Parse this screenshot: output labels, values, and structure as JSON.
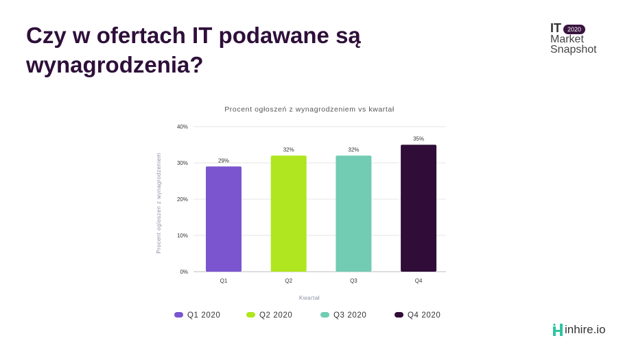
{
  "slide": {
    "title": "Czy w ofertach IT podawane są wynagrodzenia?",
    "logo": {
      "line1": "IT",
      "badge": "2020",
      "line2": "Market",
      "line3": "Snapshot"
    },
    "brand": "inhire.io"
  },
  "colors": {
    "title": "#2e0f3a",
    "Q1": "#7b55d0",
    "Q2": "#b0e61f",
    "Q3": "#72ccb4",
    "Q4": "#2f0d38"
  },
  "chart_data": {
    "type": "bar",
    "title": "Procent ogłoszeń z wynagrodzeniem vs kwartał",
    "xlabel": "Kwartał",
    "ylabel": "Procent ogloszen z wynagrodzeniem",
    "categories": [
      "Q1",
      "Q2",
      "Q3",
      "Q4"
    ],
    "values": [
      29,
      32,
      32,
      35
    ],
    "data_labels": [
      "29%",
      "32%",
      "32%",
      "35%"
    ],
    "ylim": [
      0,
      40
    ],
    "yticks": [
      "0%",
      "10%",
      "20%",
      "30%",
      "40%"
    ],
    "grid": true,
    "legend_position": "bottom",
    "legend": [
      "Q1 2020",
      "Q2 2020",
      "Q3 2020",
      "Q4 2020"
    ]
  }
}
